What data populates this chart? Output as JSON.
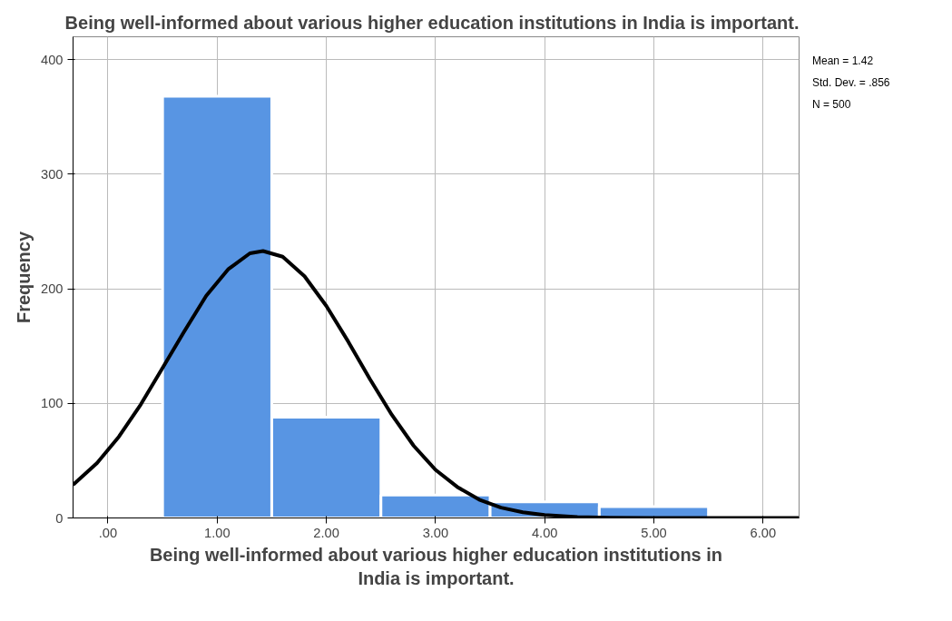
{
  "chart_data": {
    "type": "histogram",
    "title": "Being well-informed about various higher education institutions in India is important.",
    "xlabel": "Being well-informed about various higher education institutions in India is important.",
    "ylabel": "Frequency",
    "annotations": [
      "Mean = 1.42",
      "Std. Dev. = .856",
      "N = 500"
    ],
    "xlim": [
      -0.32,
      6.33
    ],
    "ylim": [
      0,
      420
    ],
    "xticks": [
      {
        "value": 0,
        "label": ".00"
      },
      {
        "value": 1,
        "label": "1.00"
      },
      {
        "value": 2,
        "label": "2.00"
      },
      {
        "value": 3,
        "label": "3.00"
      },
      {
        "value": 4,
        "label": "4.00"
      },
      {
        "value": 5,
        "label": "5.00"
      },
      {
        "value": 6,
        "label": "6.00"
      }
    ],
    "yticks": [
      0,
      100,
      200,
      300,
      400
    ],
    "grid": true,
    "series": [
      {
        "color": "#5895e3",
        "bins": [
          0.5,
          1.5,
          2.5,
          3.5,
          4.5,
          5.5
        ],
        "values": [
          368,
          88,
          20,
          14,
          10
        ]
      },
      {
        "type": "line",
        "color": "#000000",
        "x": [
          -0.32,
          -0.1,
          0.1,
          0.3,
          0.5,
          0.7,
          0.9,
          1.1,
          1.3,
          1.42,
          1.6,
          1.8,
          2.0,
          2.2,
          2.4,
          2.6,
          2.8,
          3.0,
          3.2,
          3.4,
          3.6,
          3.8,
          4.0,
          4.3,
          4.6,
          5.0,
          6.33
        ],
        "values": [
          29,
          48,
          71,
          99,
          131,
          163,
          194,
          217,
          231,
          233,
          228,
          211,
          185,
          154,
          121,
          90,
          63,
          42,
          27,
          16,
          9,
          5,
          2.5,
          0.8,
          0.2,
          0,
          0
        ]
      }
    ]
  }
}
